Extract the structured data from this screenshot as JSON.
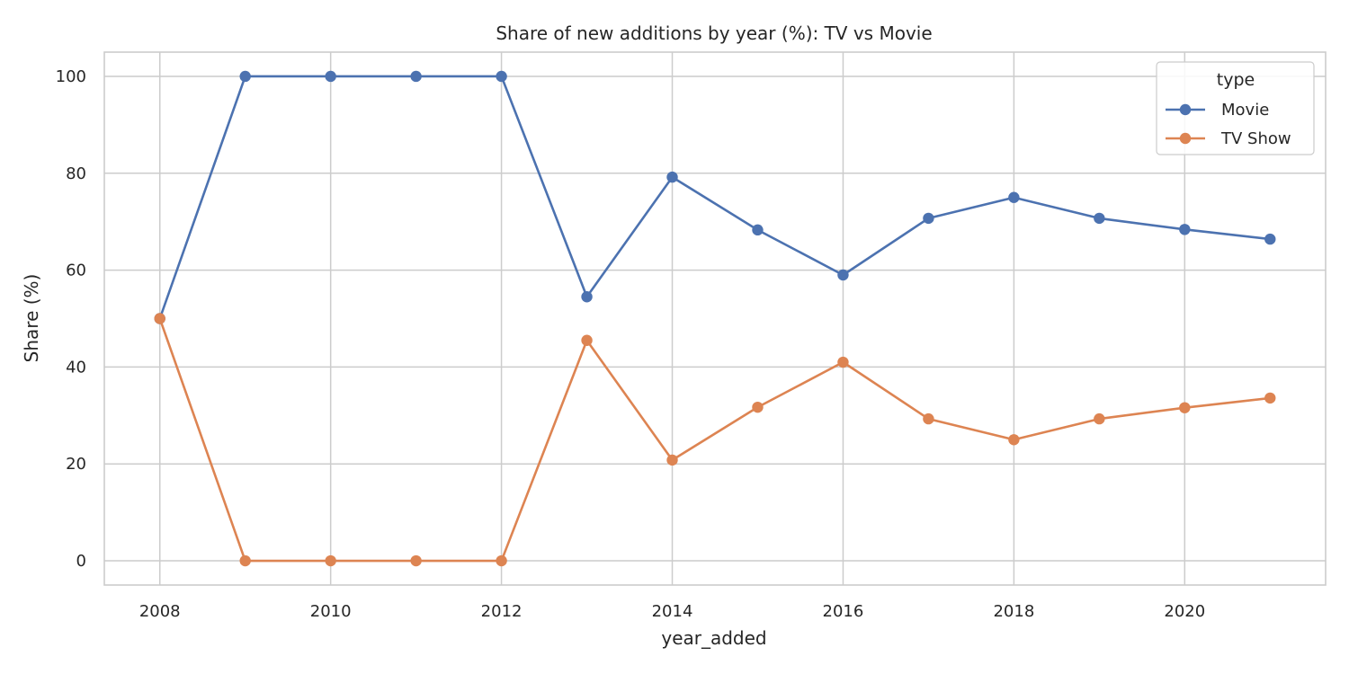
{
  "chart_data": {
    "type": "line",
    "title": "Share of new additions by year (%): TV vs Movie",
    "xlabel": "year_added",
    "ylabel": "Share (%)",
    "x": [
      2008,
      2009,
      2010,
      2011,
      2012,
      2013,
      2014,
      2015,
      2016,
      2017,
      2018,
      2019,
      2020,
      2021
    ],
    "xlim": [
      2007.35,
      2021.65
    ],
    "ylim": [
      -5,
      105
    ],
    "xticks": [
      2008,
      2010,
      2012,
      2014,
      2016,
      2018,
      2020
    ],
    "yticks": [
      0,
      20,
      40,
      60,
      80,
      100
    ],
    "grid": true,
    "legend": {
      "title": "type",
      "position": "top-right"
    },
    "series": [
      {
        "name": "Movie",
        "color": "#4c72b0",
        "marker": "circle",
        "values": [
          50,
          100,
          100,
          100,
          100,
          54.5,
          79.2,
          68.3,
          59.0,
          70.7,
          75.0,
          70.7,
          68.4,
          66.4
        ]
      },
      {
        "name": "TV Show",
        "color": "#dd8452",
        "marker": "circle",
        "values": [
          50,
          0,
          0,
          0,
          0,
          45.5,
          20.8,
          31.7,
          41.0,
          29.3,
          25.0,
          29.3,
          31.6,
          33.6
        ]
      }
    ]
  }
}
